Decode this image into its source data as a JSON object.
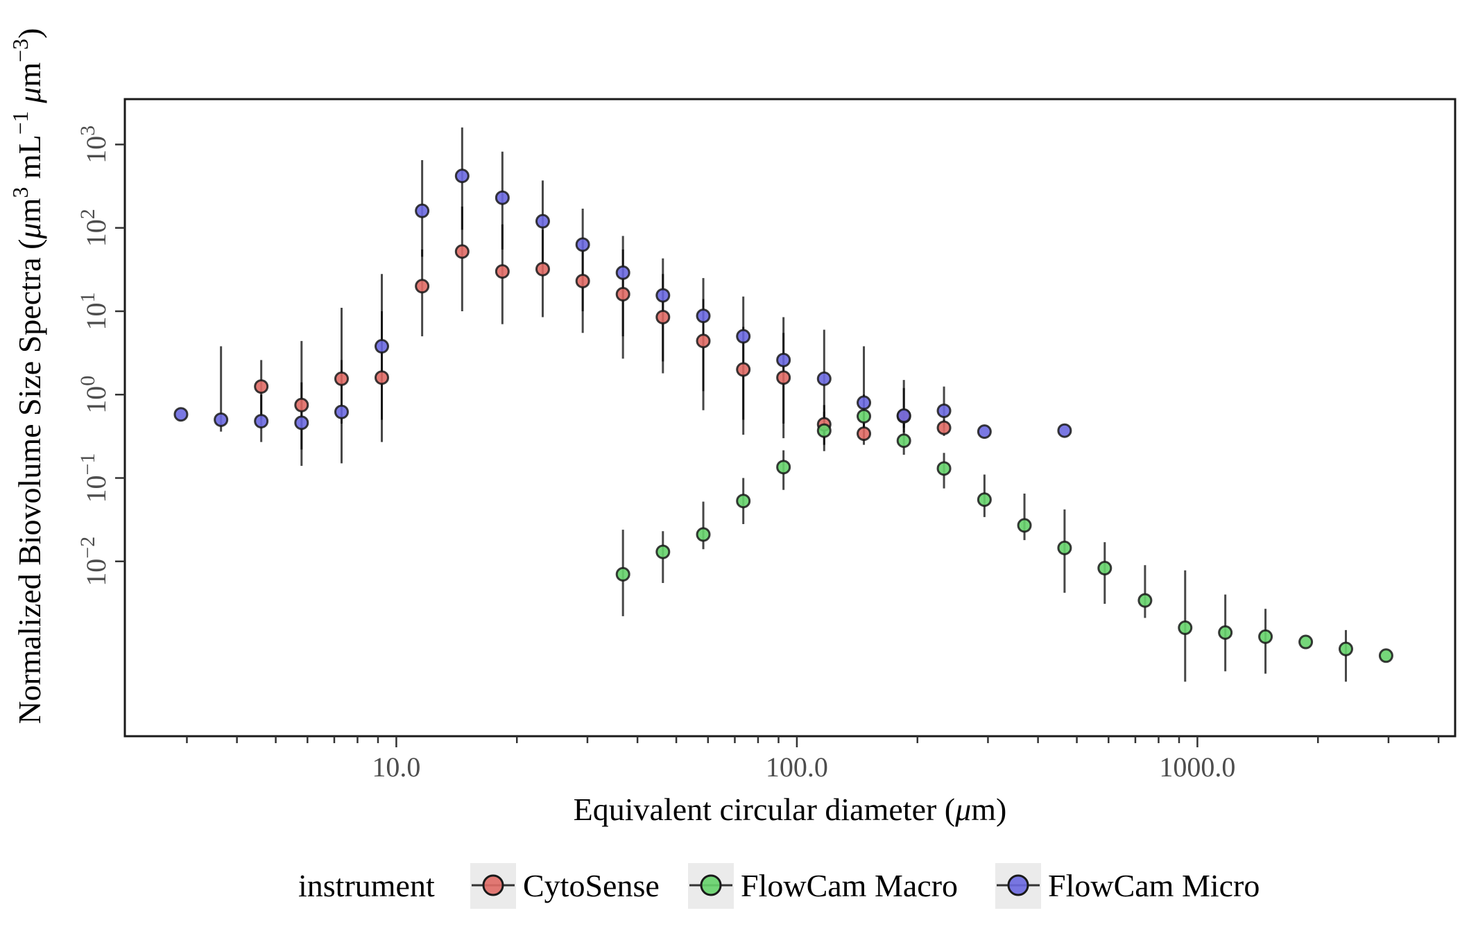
{
  "chart_data": {
    "type": "scatter",
    "title": "",
    "xlabel_parts": [
      "Equivalent circular diameter (",
      "μ",
      "m)"
    ],
    "ylabel_parts": [
      "Normalized Biovolume Size Spectra (",
      "μ",
      "m",
      "3",
      " mL",
      "−1",
      " ",
      "μ",
      "m",
      "−3",
      ")"
    ],
    "x_scale": "log",
    "y_scale": "log",
    "xlim": [
      2.1,
      4400
    ],
    "ylim": [
      8e-05,
      3500
    ],
    "x_ticks": [
      {
        "value": 10,
        "label": "10.0"
      },
      {
        "value": 100,
        "label": "100.0"
      },
      {
        "value": 1000,
        "label": "1000.0"
      }
    ],
    "y_ticks": [
      {
        "value": 1000,
        "base": "10",
        "exp": "3"
      },
      {
        "value": 100,
        "base": "10",
        "exp": "2"
      },
      {
        "value": 10,
        "base": "10",
        "exp": "1"
      },
      {
        "value": 1,
        "base": "10",
        "exp": "0"
      },
      {
        "value": 0.1,
        "base": "10",
        "exp": "−1"
      },
      {
        "value": 0.01,
        "base": "10",
        "exp": "−2"
      }
    ],
    "grid": false,
    "legend": {
      "title": "instrument",
      "position": "bottom"
    },
    "series": [
      {
        "name": "CytoSense",
        "color": "#e06c66",
        "points": [
          {
            "x": 4.6,
            "y": 1.25,
            "lo": 0.5,
            "hi": 2.6
          },
          {
            "x": 5.8,
            "y": 0.75,
            "lo": 0.22,
            "hi": 1.4
          },
          {
            "x": 7.3,
            "y": 1.55,
            "lo": 0.45,
            "hi": 2.6
          },
          {
            "x": 9.2,
            "y": 1.6,
            "lo": 0.5,
            "hi": 10
          },
          {
            "x": 11.6,
            "y": 20,
            "lo": 5,
            "hi": 55
          },
          {
            "x": 14.6,
            "y": 52,
            "lo": 10,
            "hi": 180
          },
          {
            "x": 18.4,
            "y": 30,
            "lo": 7,
            "hi": 110
          },
          {
            "x": 23.2,
            "y": 32,
            "lo": 8.5,
            "hi": 95
          },
          {
            "x": 29.2,
            "y": 23,
            "lo": 5.5,
            "hi": 70
          },
          {
            "x": 36.8,
            "y": 16,
            "lo": 2.7,
            "hi": 55
          },
          {
            "x": 46.3,
            "y": 8.5,
            "lo": 1.8,
            "hi": 28
          },
          {
            "x": 58.4,
            "y": 4.4,
            "lo": 0.65,
            "hi": 14
          },
          {
            "x": 73.5,
            "y": 2.0,
            "lo": 0.33,
            "hi": 6.5
          },
          {
            "x": 92.6,
            "y": 1.6,
            "lo": 0.3,
            "hi": 5.5
          },
          {
            "x": 117,
            "y": 0.44,
            "lo": 0.25,
            "hi": 0.75
          },
          {
            "x": 147,
            "y": 0.34,
            "lo": 0.25,
            "hi": 0.45
          },
          {
            "x": 185,
            "y": 0.55,
            "lo": 0.35,
            "hi": 1.2
          },
          {
            "x": 233,
            "y": 0.4,
            "lo": 0.32,
            "hi": 0.5
          }
        ]
      },
      {
        "name": "FlowCam Macro",
        "color": "#66d36b",
        "points": [
          {
            "x": 36.8,
            "y": 0.007,
            "lo": 0.0022,
            "hi": 0.024
          },
          {
            "x": 46.3,
            "y": 0.013,
            "lo": 0.0055,
            "hi": 0.023
          },
          {
            "x": 58.4,
            "y": 0.021,
            "lo": 0.014,
            "hi": 0.052
          },
          {
            "x": 73.5,
            "y": 0.053,
            "lo": 0.028,
            "hi": 0.1
          },
          {
            "x": 92.6,
            "y": 0.135,
            "lo": 0.072,
            "hi": 0.215
          },
          {
            "x": 117,
            "y": 0.37,
            "lo": 0.21,
            "hi": 0.62
          },
          {
            "x": 147,
            "y": 0.55,
            "lo": 0.28,
            "hi": 1.0
          },
          {
            "x": 185,
            "y": 0.28,
            "lo": 0.19,
            "hi": 0.45
          },
          {
            "x": 233,
            "y": 0.13,
            "lo": 0.075,
            "hi": 0.2
          },
          {
            "x": 294,
            "y": 0.055,
            "lo": 0.034,
            "hi": 0.11
          },
          {
            "x": 370,
            "y": 0.027,
            "lo": 0.018,
            "hi": 0.065
          },
          {
            "x": 466,
            "y": 0.0145,
            "lo": 0.0042,
            "hi": 0.042
          },
          {
            "x": 587,
            "y": 0.0083,
            "lo": 0.0031,
            "hi": 0.017
          },
          {
            "x": 740,
            "y": 0.0034,
            "lo": 0.0021,
            "hi": 0.009
          },
          {
            "x": 932,
            "y": 0.0016,
            "lo": 0.00036,
            "hi": 0.0078
          },
          {
            "x": 1174,
            "y": 0.0014,
            "lo": 0.00048,
            "hi": 0.004
          },
          {
            "x": 1479,
            "y": 0.00125,
            "lo": 0.00045,
            "hi": 0.0027
          },
          {
            "x": 1864,
            "y": 0.00108,
            "lo": null,
            "hi": null
          },
          {
            "x": 2348,
            "y": 0.00089,
            "lo": 0.00036,
            "hi": 0.0015
          },
          {
            "x": 2958,
            "y": 0.00074,
            "lo": null,
            "hi": null
          }
        ]
      },
      {
        "name": "FlowCam Micro",
        "color": "#6b69e0",
        "points": [
          {
            "x": 2.9,
            "y": 0.58,
            "lo": null,
            "hi": null
          },
          {
            "x": 3.65,
            "y": 0.5,
            "lo": 0.36,
            "hi": 3.8
          },
          {
            "x": 4.6,
            "y": 0.48,
            "lo": 0.27,
            "hi": 1.0
          },
          {
            "x": 5.8,
            "y": 0.46,
            "lo": 0.14,
            "hi": 4.4
          },
          {
            "x": 7.3,
            "y": 0.62,
            "lo": 0.15,
            "hi": 11
          },
          {
            "x": 9.2,
            "y": 3.8,
            "lo": 0.27,
            "hi": 28
          },
          {
            "x": 11.6,
            "y": 160,
            "lo": 45,
            "hi": 650
          },
          {
            "x": 14.6,
            "y": 420,
            "lo": 95,
            "hi": 1600
          },
          {
            "x": 18.4,
            "y": 230,
            "lo": 55,
            "hi": 820
          },
          {
            "x": 23.2,
            "y": 120,
            "lo": 28,
            "hi": 370
          },
          {
            "x": 29.2,
            "y": 63,
            "lo": 10,
            "hi": 170
          },
          {
            "x": 36.8,
            "y": 29,
            "lo": 5,
            "hi": 80
          },
          {
            "x": 46.3,
            "y": 15.5,
            "lo": 2.5,
            "hi": 43
          },
          {
            "x": 58.4,
            "y": 8.8,
            "lo": 1.1,
            "hi": 25
          },
          {
            "x": 73.5,
            "y": 5.0,
            "lo": 0.5,
            "hi": 15
          },
          {
            "x": 92.6,
            "y": 2.6,
            "lo": 0.45,
            "hi": 8.5
          },
          {
            "x": 117,
            "y": 1.55,
            "lo": 0.3,
            "hi": 6
          },
          {
            "x": 147,
            "y": 0.8,
            "lo": 0.28,
            "hi": 3.8
          },
          {
            "x": 185,
            "y": 0.56,
            "lo": 0.4,
            "hi": 1.5
          },
          {
            "x": 233,
            "y": 0.64,
            "lo": 0.4,
            "hi": 1.25
          },
          {
            "x": 294,
            "y": 0.36,
            "lo": null,
            "hi": null
          },
          {
            "x": 466,
            "y": 0.37,
            "lo": null,
            "hi": null
          }
        ]
      }
    ]
  }
}
